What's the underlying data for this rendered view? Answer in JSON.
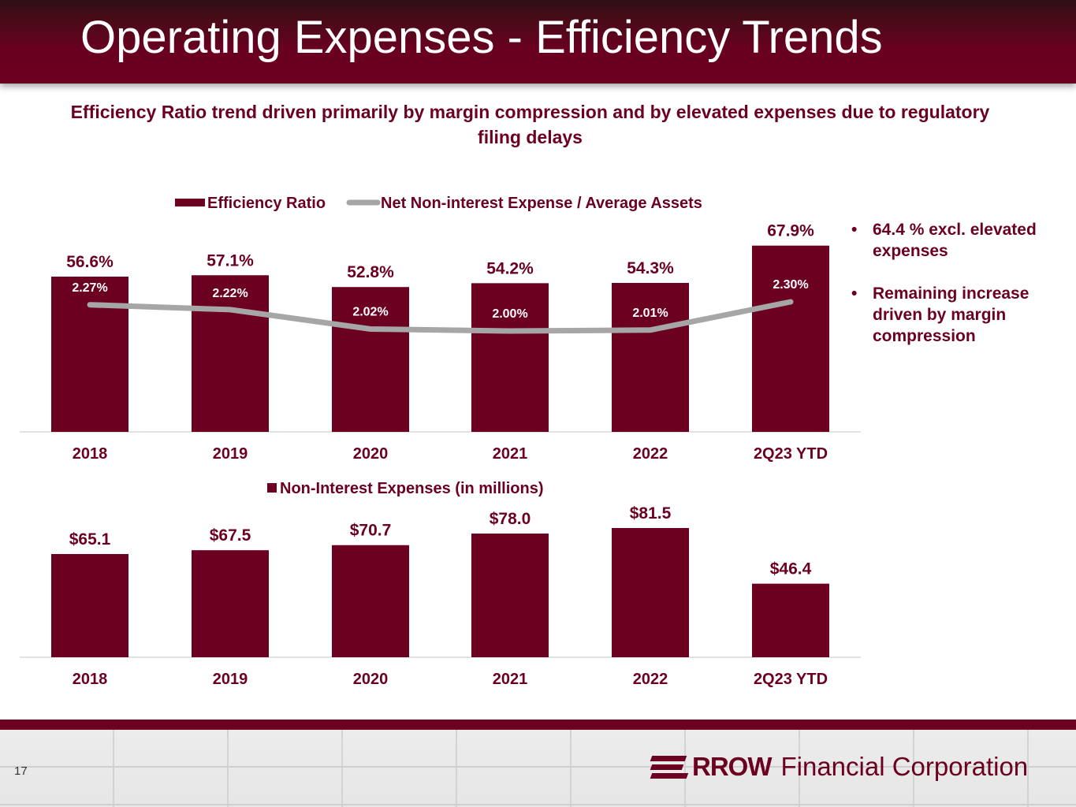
{
  "header": {
    "title": "Operating Expenses - Efficiency Trends"
  },
  "subtitle": "Efficiency Ratio trend driven primarily by margin compression and by elevated expenses due to regulatory filing delays",
  "colors": {
    "brand": "#6b0020",
    "line": "#a6a6a6",
    "axis": "#d9d9d9",
    "white": "#ffffff"
  },
  "bullets": [
    "64.4 % excl. elevated expenses",
    "Remaining increase driven by margin compression"
  ],
  "bullet_glyph": "•",
  "footer": {
    "page_number": "17",
    "logo_bold": "RROW",
    "logo_rest": "Financial Corporation"
  },
  "chart_data": [
    {
      "type": "bar",
      "title": "",
      "categories": [
        "2018",
        "2019",
        "2020",
        "2021",
        "2022",
        "2Q23 YTD"
      ],
      "series": [
        {
          "name": "Efficiency Ratio",
          "type": "bar",
          "values": [
            56.6,
            57.1,
            52.8,
            54.2,
            54.3,
            67.9
          ],
          "labels": [
            "56.6%",
            "57.1%",
            "52.8%",
            "54.2%",
            "54.3%",
            "67.9%"
          ]
        },
        {
          "name": "Net Non-interest Expense / Average Assets",
          "type": "line",
          "values": [
            2.27,
            2.22,
            2.02,
            2.0,
            2.01,
            2.3
          ],
          "labels": [
            "2.27%",
            "2.22%",
            "2.02%",
            "2.00%",
            "2.01%",
            "2.30%"
          ]
        }
      ],
      "legend": "top-center",
      "xlabel": "",
      "ylabel": "",
      "grid": false
    },
    {
      "type": "bar",
      "title": "",
      "categories": [
        "2018",
        "2019",
        "2020",
        "2021",
        "2022",
        "2Q23 YTD"
      ],
      "series": [
        {
          "name": "Non-Interest Expenses (in millions)",
          "values": [
            65.1,
            67.5,
            70.7,
            78.0,
            81.5,
            46.4
          ],
          "labels": [
            "$65.1",
            "$67.5",
            "$70.7",
            "$78.0",
            "$81.5",
            "$46.4"
          ]
        }
      ],
      "legend": "top-center",
      "xlabel": "",
      "ylabel": "",
      "grid": false
    }
  ]
}
